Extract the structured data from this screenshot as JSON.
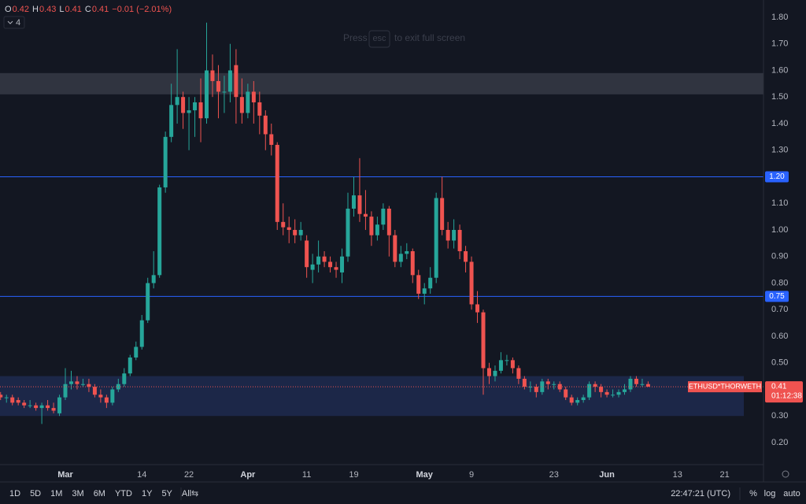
{
  "chart_data": {
    "type": "candlestick",
    "header": {
      "labels": [
        "O",
        "H",
        "L",
        "C"
      ],
      "values": [
        0.42,
        0.43,
        0.41,
        0.41
      ],
      "change": "−0.01 (−2.01%)",
      "indicators": 4
    },
    "overlay": {
      "press": "Press",
      "key": "esc",
      "rest": "to exit full screen"
    },
    "x": [
      -11,
      -10,
      -9,
      -8,
      -7,
      -6,
      -5,
      -4,
      -3,
      -2,
      -1,
      0,
      1,
      2,
      3,
      4,
      5,
      6,
      7,
      8,
      9,
      10,
      11,
      12,
      13,
      14,
      15,
      16,
      17,
      18,
      19,
      20,
      21,
      22,
      23,
      24,
      25,
      26,
      27,
      28,
      29,
      30,
      31,
      32,
      33,
      34,
      35,
      36,
      37,
      38,
      39,
      40,
      41,
      42,
      43,
      44,
      45,
      46,
      47,
      48,
      49,
      50,
      51,
      52,
      53,
      54,
      55,
      56,
      57,
      58,
      59,
      60,
      61,
      62,
      63,
      64,
      65,
      66,
      67,
      68,
      69,
      70,
      71,
      72,
      73,
      74,
      75,
      76,
      77,
      78,
      79,
      80,
      81,
      82,
      83,
      84,
      85,
      86,
      87,
      88,
      89,
      90,
      91,
      92,
      93,
      94,
      95,
      96,
      97,
      98,
      99
    ],
    "open": [
      0.38,
      0.37,
      0.37,
      0.36,
      0.35,
      0.34,
      0.34,
      0.33,
      0.34,
      0.33,
      0.31,
      0.37,
      0.42,
      0.43,
      0.42,
      0.42,
      0.41,
      0.38,
      0.37,
      0.35,
      0.4,
      0.42,
      0.46,
      0.52,
      0.56,
      0.66,
      0.8,
      0.83,
      1.16,
      1.35,
      1.47,
      1.5,
      1.44,
      1.45,
      1.48,
      1.42,
      1.6,
      1.56,
      1.52,
      1.52,
      1.62,
      1.5,
      1.44,
      1.52,
      1.48,
      1.43,
      1.36,
      1.32,
      1.03,
      1.01,
      1.0,
      0.98,
      0.96,
      0.85,
      0.87,
      0.9,
      0.88,
      0.86,
      0.84,
      0.9,
      1.08,
      1.13,
      1.06,
      1.05,
      0.98,
      1.02,
      1.08,
      0.98,
      0.88,
      0.91,
      0.92,
      0.83,
      0.76,
      0.78,
      0.82,
      1.12,
      1.0,
      0.96,
      1.0,
      0.92,
      0.88,
      0.72,
      0.69,
      0.48,
      0.45,
      0.47,
      0.51,
      0.51,
      0.48,
      0.44,
      0.41,
      0.41,
      0.39,
      0.43,
      0.42,
      0.42,
      0.4,
      0.37,
      0.35,
      0.36,
      0.37,
      0.42,
      0.41,
      0.39,
      0.38,
      0.38,
      0.39,
      0.4,
      0.44,
      0.42,
      0.42
    ],
    "high": [
      0.39,
      0.38,
      0.38,
      0.37,
      0.36,
      0.36,
      0.35,
      0.35,
      0.36,
      0.35,
      0.38,
      0.48,
      0.47,
      0.45,
      0.44,
      0.44,
      0.42,
      0.4,
      0.38,
      0.41,
      0.44,
      0.48,
      0.53,
      0.58,
      0.68,
      0.82,
      0.92,
      1.17,
      1.37,
      1.55,
      1.68,
      1.52,
      1.5,
      1.5,
      1.57,
      1.78,
      1.66,
      1.62,
      1.58,
      1.7,
      1.68,
      1.57,
      1.55,
      1.56,
      1.52,
      1.45,
      1.4,
      1.33,
      1.1,
      1.05,
      1.04,
      1.03,
      0.98,
      0.91,
      0.96,
      0.92,
      0.9,
      0.88,
      0.93,
      1.14,
      1.2,
      1.27,
      1.15,
      1.07,
      1.05,
      1.1,
      1.09,
      1.0,
      0.94,
      0.95,
      0.93,
      0.85,
      0.8,
      0.86,
      1.14,
      1.2,
      1.03,
      1.04,
      1.02,
      0.94,
      0.9,
      0.77,
      0.7,
      0.5,
      0.49,
      0.54,
      0.53,
      0.52,
      0.49,
      0.45,
      0.43,
      0.42,
      0.44,
      0.44,
      0.43,
      0.43,
      0.41,
      0.38,
      0.37,
      0.38,
      0.43,
      0.43,
      0.42,
      0.4,
      0.4,
      0.4,
      0.42,
      0.45,
      0.45,
      0.44,
      0.43
    ],
    "low": [
      0.36,
      0.35,
      0.34,
      0.34,
      0.33,
      0.33,
      0.32,
      0.27,
      0.32,
      0.31,
      0.3,
      0.36,
      0.4,
      0.4,
      0.41,
      0.39,
      0.37,
      0.35,
      0.33,
      0.34,
      0.39,
      0.41,
      0.45,
      0.51,
      0.55,
      0.65,
      0.78,
      0.82,
      1.14,
      1.33,
      1.4,
      1.38,
      1.3,
      1.35,
      1.33,
      1.4,
      1.5,
      1.42,
      1.44,
      1.48,
      1.4,
      1.4,
      1.42,
      1.4,
      1.36,
      1.3,
      1.28,
      1.0,
      0.98,
      0.95,
      0.95,
      0.96,
      0.82,
      0.8,
      0.84,
      0.86,
      0.84,
      0.82,
      0.8,
      0.88,
      1.05,
      1.03,
      1.0,
      0.94,
      0.96,
      1.0,
      0.9,
      0.86,
      0.86,
      0.89,
      0.8,
      0.74,
      0.72,
      0.76,
      0.8,
      0.98,
      0.93,
      0.93,
      0.89,
      0.84,
      0.7,
      0.65,
      0.38,
      0.42,
      0.43,
      0.46,
      0.49,
      0.46,
      0.42,
      0.4,
      0.39,
      0.37,
      0.38,
      0.4,
      0.4,
      0.39,
      0.36,
      0.34,
      0.34,
      0.35,
      0.36,
      0.39,
      0.37,
      0.37,
      0.37,
      0.37,
      0.38,
      0.39,
      0.41,
      0.41,
      0.41
    ],
    "close": [
      0.37,
      0.37,
      0.35,
      0.35,
      0.34,
      0.34,
      0.33,
      0.34,
      0.33,
      0.32,
      0.37,
      0.42,
      0.43,
      0.42,
      0.42,
      0.41,
      0.38,
      0.37,
      0.35,
      0.4,
      0.42,
      0.46,
      0.52,
      0.56,
      0.66,
      0.8,
      0.83,
      1.16,
      1.35,
      1.47,
      1.5,
      1.44,
      1.45,
      1.48,
      1.42,
      1.6,
      1.56,
      1.52,
      1.52,
      1.6,
      1.5,
      1.44,
      1.52,
      1.48,
      1.43,
      1.36,
      1.32,
      1.03,
      1.01,
      1.0,
      0.98,
      1.0,
      0.86,
      0.87,
      0.9,
      0.88,
      0.86,
      0.85,
      0.9,
      1.08,
      1.13,
      1.06,
      1.05,
      0.98,
      1.02,
      1.08,
      0.98,
      0.88,
      0.91,
      0.92,
      0.83,
      0.76,
      0.78,
      0.82,
      1.12,
      1.0,
      0.96,
      1.0,
      0.92,
      0.88,
      0.72,
      0.69,
      0.48,
      0.45,
      0.47,
      0.51,
      0.51,
      0.48,
      0.44,
      0.41,
      0.41,
      0.39,
      0.43,
      0.42,
      0.42,
      0.4,
      0.37,
      0.35,
      0.36,
      0.37,
      0.42,
      0.41,
      0.39,
      0.38,
      0.38,
      0.39,
      0.4,
      0.44,
      0.42,
      0.42,
      0.41
    ],
    "up_color": "#26a69a",
    "down_color": "#ef5350",
    "xlim": [
      -11.1,
      118.6
    ],
    "xticks": [
      {
        "value": 0,
        "label": "Mar"
      },
      {
        "value": 13,
        "label": "14"
      },
      {
        "value": 21,
        "label": "22"
      },
      {
        "value": 31,
        "label": "Apr"
      },
      {
        "value": 41,
        "label": "11"
      },
      {
        "value": 49,
        "label": "19"
      },
      {
        "value": 61,
        "label": "May"
      },
      {
        "value": 69,
        "label": "9"
      },
      {
        "value": 83,
        "label": "23"
      },
      {
        "value": 92,
        "label": "Jun"
      },
      {
        "value": 104,
        "label": "13"
      },
      {
        "value": 112,
        "label": "21"
      }
    ],
    "ylim": [
      0.117,
      1.865
    ],
    "yticks": [
      {
        "value": 0.2,
        "label": "0.20"
      },
      {
        "value": 0.3,
        "label": "0.30"
      },
      {
        "value": 0.4,
        "label": "0.40"
      },
      {
        "value": 0.5,
        "label": "0.50"
      },
      {
        "value": 0.6,
        "label": "0.60"
      },
      {
        "value": 0.7,
        "label": "0.70"
      },
      {
        "value": 0.8,
        "label": "0.80"
      },
      {
        "value": 0.9,
        "label": "0.90"
      },
      {
        "value": 1.0,
        "label": "1.00"
      },
      {
        "value": 1.1,
        "label": "1.10"
      },
      {
        "value": 1.2,
        "label": "1.20"
      },
      {
        "value": 1.3,
        "label": "1.30"
      },
      {
        "value": 1.4,
        "label": "1.40"
      },
      {
        "value": 1.5,
        "label": "1.50"
      },
      {
        "value": 1.6,
        "label": "1.60"
      },
      {
        "value": 1.7,
        "label": "1.70"
      },
      {
        "value": 1.8,
        "label": "1.80"
      }
    ],
    "zones": [
      {
        "range": [
          1.51,
          1.59
        ],
        "color": "#363a45"
      },
      {
        "range": [
          0.3,
          0.45
        ],
        "color": "#1e2a4f"
      }
    ],
    "levels": [
      {
        "value": 1.2,
        "label": "1.20"
      },
      0.75
    ],
    "level_color": "#2962ff",
    "last_price": {
      "value": 0.41,
      "symbol": "ETHUSD*THORWETH",
      "countdown": "01:12:38",
      "color": "#ef5350"
    },
    "toolbar": {
      "intervals": [
        "1D",
        "5D",
        "1M",
        "3M",
        "6M",
        "YTD",
        "1Y",
        "5Y",
        "All"
      ],
      "time": "22:47:21 (UTC)",
      "options": [
        "%",
        "log",
        "auto"
      ]
    }
  }
}
